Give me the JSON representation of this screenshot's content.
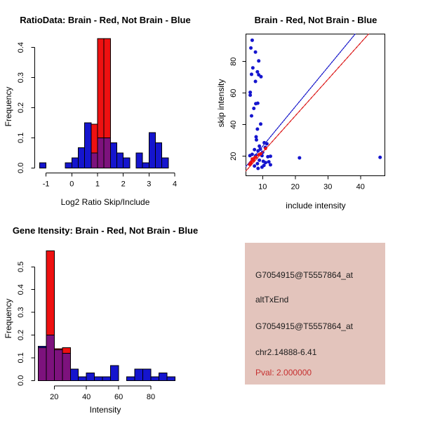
{
  "colors": {
    "blue": "#1515CE",
    "red": "#EE1111",
    "purple": "#7D127D",
    "line_blue": "#2222CC",
    "line_red": "#DD2222",
    "axis": "#000000",
    "info_bg": "#E3C4BC",
    "info_text": "#1b1b1b",
    "pval_red": "#C62F2F"
  },
  "chart_data": [
    {
      "id": "ratio_hist",
      "type": "bar",
      "title": "RatioData: Brain - Red, Not Brain - Blue",
      "xlabel": "Log2 Ratio Skip/Include",
      "ylabel": "Frequency",
      "legend": {
        "red_series": "Brain",
        "blue_series": "Not Brain",
        "overlap": "purple"
      },
      "x_ticks": [
        -1,
        0,
        1,
        2,
        3,
        4
      ],
      "y_ticks": [
        "0.0",
        "0.1",
        "0.2",
        "0.3",
        "0.4"
      ],
      "ylim": [
        0,
        0.43
      ],
      "bin_width": 0.25,
      "bins": [
        {
          "x": -1.25,
          "blue": 0.017,
          "red": 0
        },
        {
          "x": -0.25,
          "blue": 0.017,
          "red": 0
        },
        {
          "x": 0.0,
          "blue": 0.033,
          "red": 0
        },
        {
          "x": 0.25,
          "blue": 0.067,
          "red": 0
        },
        {
          "x": 0.5,
          "blue": 0.15,
          "red": 0
        },
        {
          "x": 0.75,
          "blue": 0.05,
          "red": 0.145
        },
        {
          "x": 1.0,
          "blue": 0.1,
          "red": 0.43
        },
        {
          "x": 1.25,
          "blue": 0.1,
          "red": 0.43
        },
        {
          "x": 1.5,
          "blue": 0.083,
          "red": 0
        },
        {
          "x": 1.75,
          "blue": 0.05,
          "red": 0
        },
        {
          "x": 2.0,
          "blue": 0.033,
          "red": 0
        },
        {
          "x": 2.5,
          "blue": 0.05,
          "red": 0
        },
        {
          "x": 2.75,
          "blue": 0.017,
          "red": 0
        },
        {
          "x": 3.0,
          "blue": 0.117,
          "red": 0
        },
        {
          "x": 3.25,
          "blue": 0.083,
          "red": 0
        },
        {
          "x": 3.5,
          "blue": 0.033,
          "red": 0
        }
      ]
    },
    {
      "id": "scatter",
      "type": "scatter",
      "title": "Brain - Red, Not Brain - Blue",
      "xlabel": "include intensity",
      "ylabel": "skip intensity",
      "x_ticks": [
        10,
        20,
        30,
        40
      ],
      "y_ticks": [
        20,
        40,
        60,
        80
      ],
      "xlim": [
        4.9,
        47.5
      ],
      "ylim": [
        7.7,
        97.5
      ],
      "blue_points": [
        [
          6.8,
          93.5
        ],
        [
          6.4,
          88.6
        ],
        [
          7.8,
          86.0
        ],
        [
          8.8,
          80.4
        ],
        [
          7.0,
          76.0
        ],
        [
          8.4,
          73.5
        ],
        [
          6.6,
          71.9
        ],
        [
          8.8,
          71.6
        ],
        [
          9.5,
          70.4
        ],
        [
          7.8,
          67.4
        ],
        [
          6.2,
          60.5
        ],
        [
          6.2,
          58.7
        ],
        [
          7.9,
          53.3
        ],
        [
          8.5,
          53.6
        ],
        [
          7.3,
          50.3
        ],
        [
          6.6,
          45.6
        ],
        [
          9.4,
          40.4
        ],
        [
          8.4,
          37.2
        ],
        [
          8.0,
          32.3
        ],
        [
          8.1,
          30.4
        ],
        [
          10.5,
          28.6
        ],
        [
          11.3,
          27.9
        ],
        [
          10.8,
          25.6
        ],
        [
          9.0,
          26.4
        ],
        [
          9.3,
          24.5
        ],
        [
          7.5,
          24.2
        ],
        [
          8.6,
          23.4
        ],
        [
          10.0,
          22.5
        ],
        [
          6.8,
          21.2
        ],
        [
          6.1,
          20.4
        ],
        [
          7.9,
          20.4
        ],
        [
          9.8,
          20.4
        ],
        [
          12.4,
          20.0
        ],
        [
          11.6,
          19.7
        ],
        [
          7.2,
          18.2
        ],
        [
          9.0,
          17.5
        ],
        [
          11.9,
          16.5
        ],
        [
          10.2,
          16.8
        ],
        [
          6.4,
          16.0
        ],
        [
          10.9,
          16.0
        ],
        [
          8.4,
          15.3
        ],
        [
          12.4,
          14.6
        ],
        [
          10.4,
          14.2
        ],
        [
          7.5,
          13.8
        ],
        [
          9.8,
          13.1
        ],
        [
          8.6,
          12.3
        ],
        [
          21.3,
          19.0
        ],
        [
          46.0,
          19.3
        ]
      ],
      "red_points": [
        [
          6.0,
          14.8
        ],
        [
          6.3,
          15.6
        ],
        [
          6.5,
          16.3
        ],
        [
          6.8,
          18.3
        ],
        [
          7.2,
          17.4
        ],
        [
          7.5,
          18.9
        ],
        [
          7.9,
          19.5
        ],
        [
          8.8,
          21.0
        ],
        [
          9.4,
          21.6
        ],
        [
          10.9,
          24.9
        ]
      ],
      "blue_line": {
        "x1": 4.8,
        "y1": 13.3,
        "x2": 38.4,
        "y2": 97.5
      },
      "red_line": {
        "x1": 4.8,
        "y1": 10.5,
        "x2": 42.5,
        "y2": 97.5
      }
    },
    {
      "id": "intensity_hist",
      "type": "bar",
      "title": "Gene Itensity: Brain - Red, Not Brain - Blue",
      "xlabel": "Intensity",
      "ylabel": "Frequency",
      "legend": {
        "red_series": "Brain",
        "blue_series": "Not Brain",
        "overlap": "purple"
      },
      "x_ticks": [
        20,
        40,
        60,
        80
      ],
      "y_ticks": [
        "0.0",
        "0.1",
        "0.2",
        "0.3",
        "0.4",
        "0.5"
      ],
      "ylim": [
        0,
        0.57
      ],
      "bin_width": 5,
      "bins": [
        {
          "x": 10,
          "blue": 0.15,
          "red": 0.145
        },
        {
          "x": 15,
          "blue": 0.2,
          "red": 0.57
        },
        {
          "x": 20,
          "blue": 0.135,
          "red": 0.14
        },
        {
          "x": 25,
          "blue": 0.12,
          "red": 0.145
        },
        {
          "x": 30,
          "blue": 0.05,
          "red": 0
        },
        {
          "x": 35,
          "blue": 0.017,
          "red": 0
        },
        {
          "x": 40,
          "blue": 0.033,
          "red": 0
        },
        {
          "x": 45,
          "blue": 0.017,
          "red": 0
        },
        {
          "x": 50,
          "blue": 0.017,
          "red": 0
        },
        {
          "x": 55,
          "blue": 0.065,
          "red": 0
        },
        {
          "x": 65,
          "blue": 0.017,
          "red": 0
        },
        {
          "x": 70,
          "blue": 0.05,
          "red": 0
        },
        {
          "x": 75,
          "blue": 0.05,
          "red": 0
        },
        {
          "x": 80,
          "blue": 0.017,
          "red": 0
        },
        {
          "x": 85,
          "blue": 0.033,
          "red": 0
        },
        {
          "x": 90,
          "blue": 0.017,
          "red": 0
        }
      ]
    }
  ],
  "info_panel": {
    "lines": [
      "G7054915@T5557864_at",
      "altTxEnd",
      "G7054915@T5557864_at",
      "chr2.14888-6.41"
    ],
    "pval": "Pval: 2.000000"
  }
}
